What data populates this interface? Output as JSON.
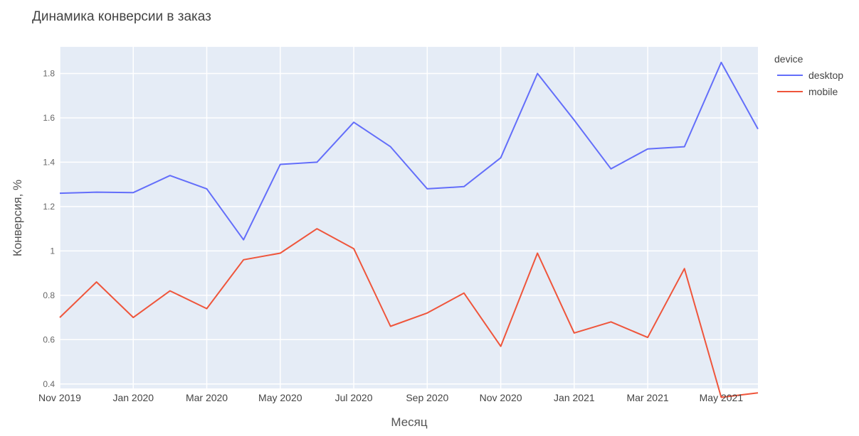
{
  "chart_data": {
    "type": "line",
    "title": "Динамика конверсии в заказ",
    "xlabel": "Месяц",
    "ylabel": "Конверсия, %",
    "x": [
      "2019-11",
      "2019-12",
      "2020-01",
      "2020-02",
      "2020-03",
      "2020-04",
      "2020-05",
      "2020-06",
      "2020-07",
      "2020-08",
      "2020-09",
      "2020-10",
      "2020-11",
      "2020-12",
      "2021-01",
      "2021-02",
      "2021-03",
      "2021-04",
      "2021-05",
      "2021-06"
    ],
    "x_tick_labels": [
      "Nov 2019",
      "Jan 2020",
      "Mar 2020",
      "May 2020",
      "Jul 2020",
      "Sep 2020",
      "Nov 2020",
      "Jan 2021",
      "Mar 2021",
      "May 2021"
    ],
    "y_tick_labels": [
      "0.4",
      "0.6",
      "0.8",
      "1",
      "1.2",
      "1.4",
      "1.6",
      "1.8"
    ],
    "ylim": [
      0.38,
      1.92
    ],
    "grid": true,
    "legend": {
      "title": "device",
      "placement": "top-right"
    },
    "series": [
      {
        "name": "desktop",
        "color": "#636efa",
        "values": [
          1.26,
          1.265,
          1.263,
          1.34,
          1.28,
          1.05,
          1.39,
          1.4,
          1.58,
          1.47,
          1.28,
          1.29,
          1.42,
          1.8,
          1.59,
          1.37,
          1.46,
          1.47,
          1.85,
          1.55
        ]
      },
      {
        "name": "mobile",
        "color": "#ef553b",
        "values": [
          0.7,
          0.86,
          0.7,
          0.82,
          0.74,
          0.96,
          0.99,
          1.1,
          1.01,
          0.66,
          0.72,
          0.81,
          0.57,
          0.99,
          0.63,
          0.68,
          0.61,
          0.92,
          0.34,
          0.36
        ]
      }
    ]
  }
}
